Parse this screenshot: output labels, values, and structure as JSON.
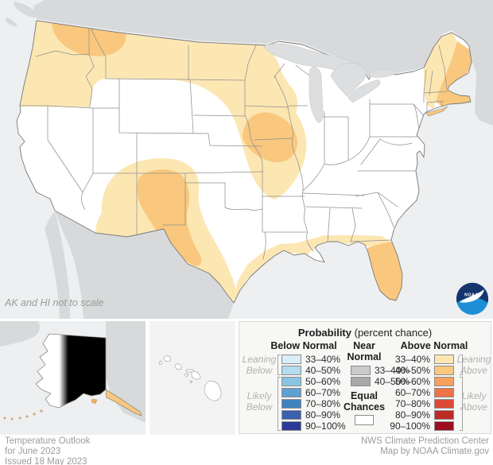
{
  "map": {
    "note": "AK and HI not to scale",
    "noaa_logo_text": "NOAA"
  },
  "legend": {
    "title_bold": "Probability",
    "title_rest": " (percent chance)",
    "below": {
      "header": "Below Normal",
      "leaning": "Leaning\nBelow",
      "likely": "Likely\nBelow",
      "rows": [
        {
          "label": "33–40%",
          "color": "#d9edf7"
        },
        {
          "label": "40–50%",
          "color": "#b3dcee"
        },
        {
          "label": "50–60%",
          "color": "#8bc4e2"
        },
        {
          "label": "60–70%",
          "color": "#5fa0d1"
        },
        {
          "label": "70–80%",
          "color": "#4081c0"
        },
        {
          "label": "80–90%",
          "color": "#3a60ae"
        },
        {
          "label": "90–100%",
          "color": "#2b3a94"
        }
      ]
    },
    "near": {
      "header": "Near\nNormal",
      "equal": "Equal\nChances",
      "equal_color": "#ffffff",
      "rows": [
        {
          "label": "33–40%",
          "color": "#c9cac9"
        },
        {
          "label": "40–50%",
          "color": "#a7a8a7"
        }
      ]
    },
    "above": {
      "header": "Above Normal",
      "leaning": "Leaning\nAbove",
      "likely": "Likely\nAbove",
      "rows": [
        {
          "label": "33–40%",
          "color": "#fce7b3"
        },
        {
          "label": "40–50%",
          "color": "#f9c87e"
        },
        {
          "label": "50–60%",
          "color": "#f5a05c"
        },
        {
          "label": "60–70%",
          "color": "#ee7347"
        },
        {
          "label": "70–80%",
          "color": "#de4a33"
        },
        {
          "label": "80–90%",
          "color": "#bd2b27"
        },
        {
          "label": "90–100%",
          "color": "#9c0e20"
        }
      ]
    }
  },
  "footer": {
    "left": "Temperature Outlook\nfor June 2023\nIssued 18 May 2023",
    "right": "NWS Climate Prediction Center\nMap by NOAA Climate.gov"
  },
  "map_colors": {
    "ocean": "#edeff0",
    "outside_land": "#d8d9da",
    "lakes": "#dcdedf",
    "above_33_40": "#fce7b3",
    "above_40_50": "#f9c87e",
    "borders": "#8f8f8f",
    "noaa_navy": "#16356d",
    "noaa_blue": "#1e8fd5"
  }
}
